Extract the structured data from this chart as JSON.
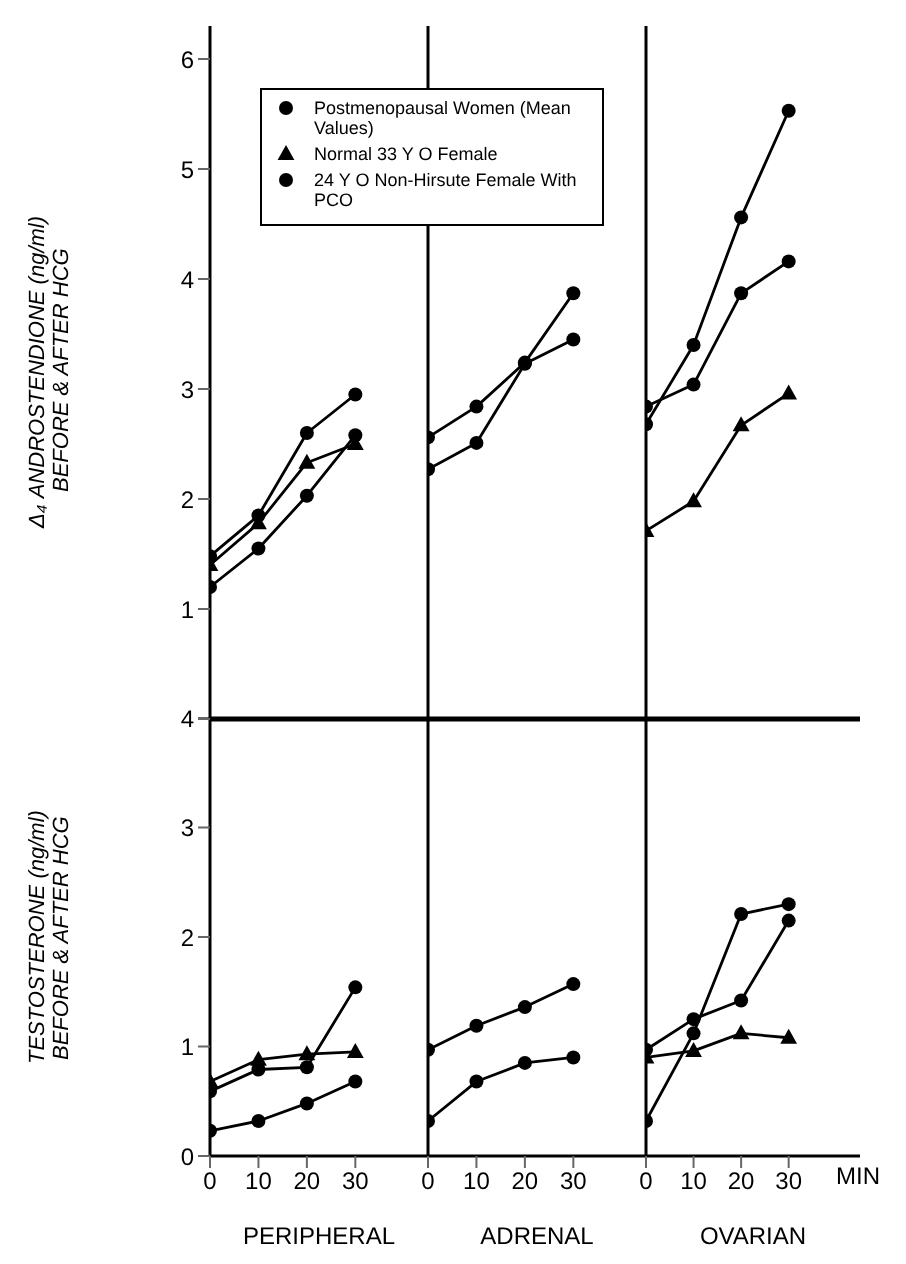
{
  "chart_data": [
    {
      "type": "line",
      "ylabel": "Δ₄ ANDROSTENDIONE (ng/ml) BEFORE & AFTER HCG",
      "x": [
        0,
        10,
        20,
        30
      ],
      "xlim": [
        0,
        45
      ],
      "xticks": [
        0,
        10,
        20,
        30
      ],
      "ylim": [
        0,
        6.3
      ],
      "yticks": [
        {
          "value": 0,
          "label": null
        },
        1,
        2,
        3,
        4,
        5,
        6
      ],
      "tick_labels": "y",
      "legend": "top right",
      "series": [
        {
          "name": "Postmenopausal Women (Mean Values)",
          "color": "#000000",
          "marker": "circle",
          "values": [
            1.48,
            1.85,
            2.6,
            2.95
          ]
        },
        {
          "name": "Normal 33 Y O Female",
          "color": "#000000",
          "marker": "triangle",
          "values": [
            1.4,
            1.78,
            2.33,
            2.5
          ]
        },
        {
          "name": "24 Y O Non-Hirsute Female With PCO",
          "color": "#000000",
          "marker": "circle",
          "values": [
            1.2,
            1.55,
            2.03,
            2.58
          ]
        }
      ]
    },
    {
      "type": "line",
      "x": [
        0,
        10,
        20,
        30
      ],
      "xlim": [
        0,
        45
      ],
      "xticks": [
        0,
        10,
        20,
        30
      ],
      "ylim": [
        0,
        6.3
      ],
      "yticks": [
        0,
        1,
        2,
        3,
        4,
        5,
        6
      ],
      "tick_labels": false,
      "series": [
        {
          "color": "#000000",
          "marker": "circle",
          "values": [
            2.27,
            2.51,
            3.23,
            3.45
          ]
        },
        {
          "color": "#000000",
          "marker": "circle",
          "values": [
            2.56,
            2.84,
            3.24,
            3.87
          ]
        }
      ]
    },
    {
      "type": "line",
      "x": [
        0,
        10,
        20,
        30
      ],
      "xlim": [
        0,
        45
      ],
      "xticks": [
        0,
        10,
        20,
        30
      ],
      "ylim": [
        0,
        6.3
      ],
      "yticks": [
        0,
        1,
        2,
        3,
        4,
        5,
        6
      ],
      "tick_labels": false,
      "series": [
        {
          "color": "#000000",
          "marker": "circle",
          "values": [
            2.68,
            3.4,
            4.56,
            5.53
          ]
        },
        {
          "color": "#000000",
          "marker": "triangle",
          "values": [
            1.71,
            1.98,
            2.67,
            2.96
          ]
        },
        {
          "color": "#000000",
          "marker": "circle",
          "values": [
            2.84,
            3.04,
            3.87,
            4.16
          ]
        }
      ]
    },
    {
      "type": "line",
      "xlabel": "PERIPHERAL",
      "ylabel": "TESTOSTERONE (ng/ml) BEFORE & AFTER HCG",
      "x": [
        0,
        10,
        20,
        30
      ],
      "xlim": [
        0,
        45
      ],
      "xticks": [
        0,
        10,
        20,
        30
      ],
      "ylim": [
        0,
        4
      ],
      "yticks": [
        0,
        1,
        2,
        3,
        4
      ],
      "series": [
        {
          "color": "#000000",
          "marker": "circle",
          "values": [
            0.59,
            0.79,
            0.81,
            1.54
          ]
        },
        {
          "color": "#000000",
          "marker": "triangle",
          "values": [
            0.68,
            0.88,
            0.93,
            0.95
          ]
        },
        {
          "color": "#000000",
          "marker": "circle",
          "values": [
            0.23,
            0.32,
            0.48,
            0.68
          ]
        }
      ]
    },
    {
      "type": "line",
      "xlabel": "ADRENAL",
      "x": [
        0,
        10,
        20,
        30
      ],
      "xlim": [
        0,
        45
      ],
      "xticks": [
        0,
        10,
        20,
        30
      ],
      "ylim": [
        0,
        4
      ],
      "yticks": [
        0,
        1,
        2,
        3,
        4
      ],
      "tick_labels": "x",
      "series": [
        {
          "color": "#000000",
          "marker": "circle",
          "values": [
            0.97,
            1.19,
            1.36,
            1.57
          ]
        },
        {
          "color": "#000000",
          "marker": "circle",
          "values": [
            0.32,
            0.68,
            0.85,
            0.9
          ]
        }
      ]
    },
    {
      "type": "line",
      "xlabel": "OVARIAN",
      "annotations": [
        "MIN"
      ],
      "x": [
        0,
        10,
        20,
        30
      ],
      "xlim": [
        0,
        45
      ],
      "xticks": [
        0,
        10,
        20,
        30
      ],
      "ylim": [
        0,
        4
      ],
      "yticks": [
        0,
        1,
        2,
        3,
        4
      ],
      "tick_labels": "x",
      "series": [
        {
          "color": "#000000",
          "marker": "circle",
          "values": [
            0.97,
            1.25,
            1.42,
            2.15
          ]
        },
        {
          "color": "#000000",
          "marker": "triangle",
          "values": [
            0.9,
            0.96,
            1.12,
            1.08
          ]
        },
        {
          "color": "#000000",
          "marker": "circle",
          "values": [
            0.32,
            1.12,
            2.21,
            2.3
          ]
        }
      ]
    }
  ]
}
